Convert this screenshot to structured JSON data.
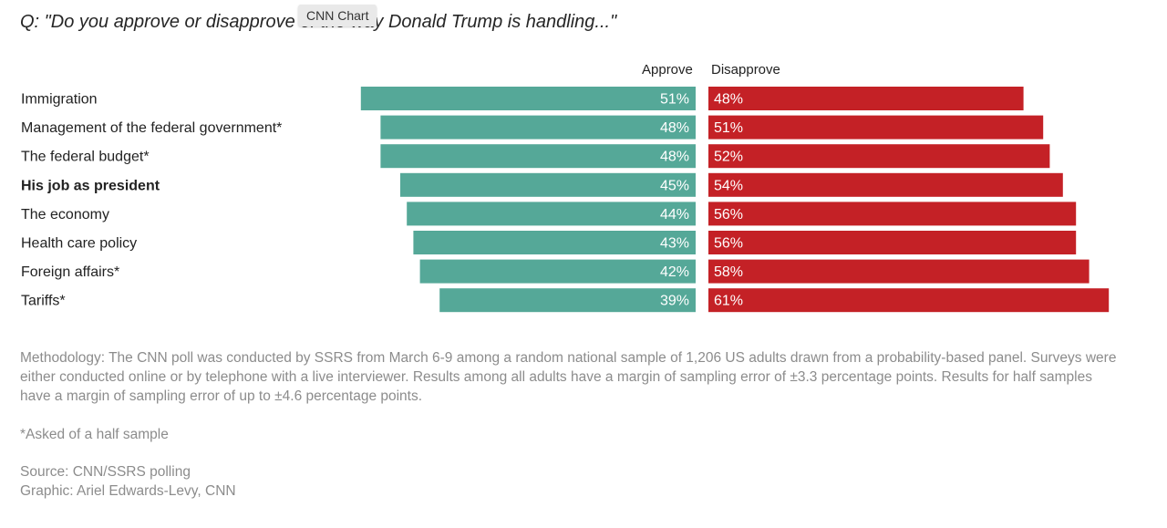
{
  "question": "Q: \"Do you approve or disapprove of the way Donald Trump is handling...\"",
  "tooltip": "CNN Chart",
  "colors": {
    "approve": "#55a898",
    "disapprove": "#c42126"
  },
  "chart_data": {
    "type": "bar",
    "layout": "diverging-horizontal",
    "categories": [
      "Immigration",
      "Management of the federal government*",
      "The federal budget*",
      "His job as president",
      "The economy",
      "Health care policy",
      "Foreign affairs*",
      "Tariffs*"
    ],
    "bold_categories": [
      "His job as president"
    ],
    "series": [
      {
        "name": "Approve",
        "values": [
          51,
          48,
          48,
          45,
          44,
          43,
          42,
          39
        ],
        "labels": [
          "51%",
          "48%",
          "48%",
          "45%",
          "44%",
          "43%",
          "42%",
          "39%"
        ]
      },
      {
        "name": "Disapprove",
        "values": [
          48,
          51,
          52,
          54,
          56,
          56,
          58,
          61
        ],
        "labels": [
          "48%",
          "51%",
          "52%",
          "54%",
          "56%",
          "56%",
          "58%",
          "61%"
        ]
      }
    ]
  },
  "footer": {
    "methodology": "Methodology: The CNN poll was conducted by SSRS from March 6-9 among a random national sample of 1,206 US adults drawn from a probability-based panel. Surveys were either conducted online or by telephone with a live interviewer. Results among all adults have a margin of sampling error of ±3.3 percentage points. Results for half samples have a margin of sampling error of up to ±4.6 percentage points.",
    "note": "*Asked of a half sample",
    "source": "Source: CNN/SSRS polling",
    "graphic": "Graphic: Ariel Edwards-Levy, CNN"
  }
}
